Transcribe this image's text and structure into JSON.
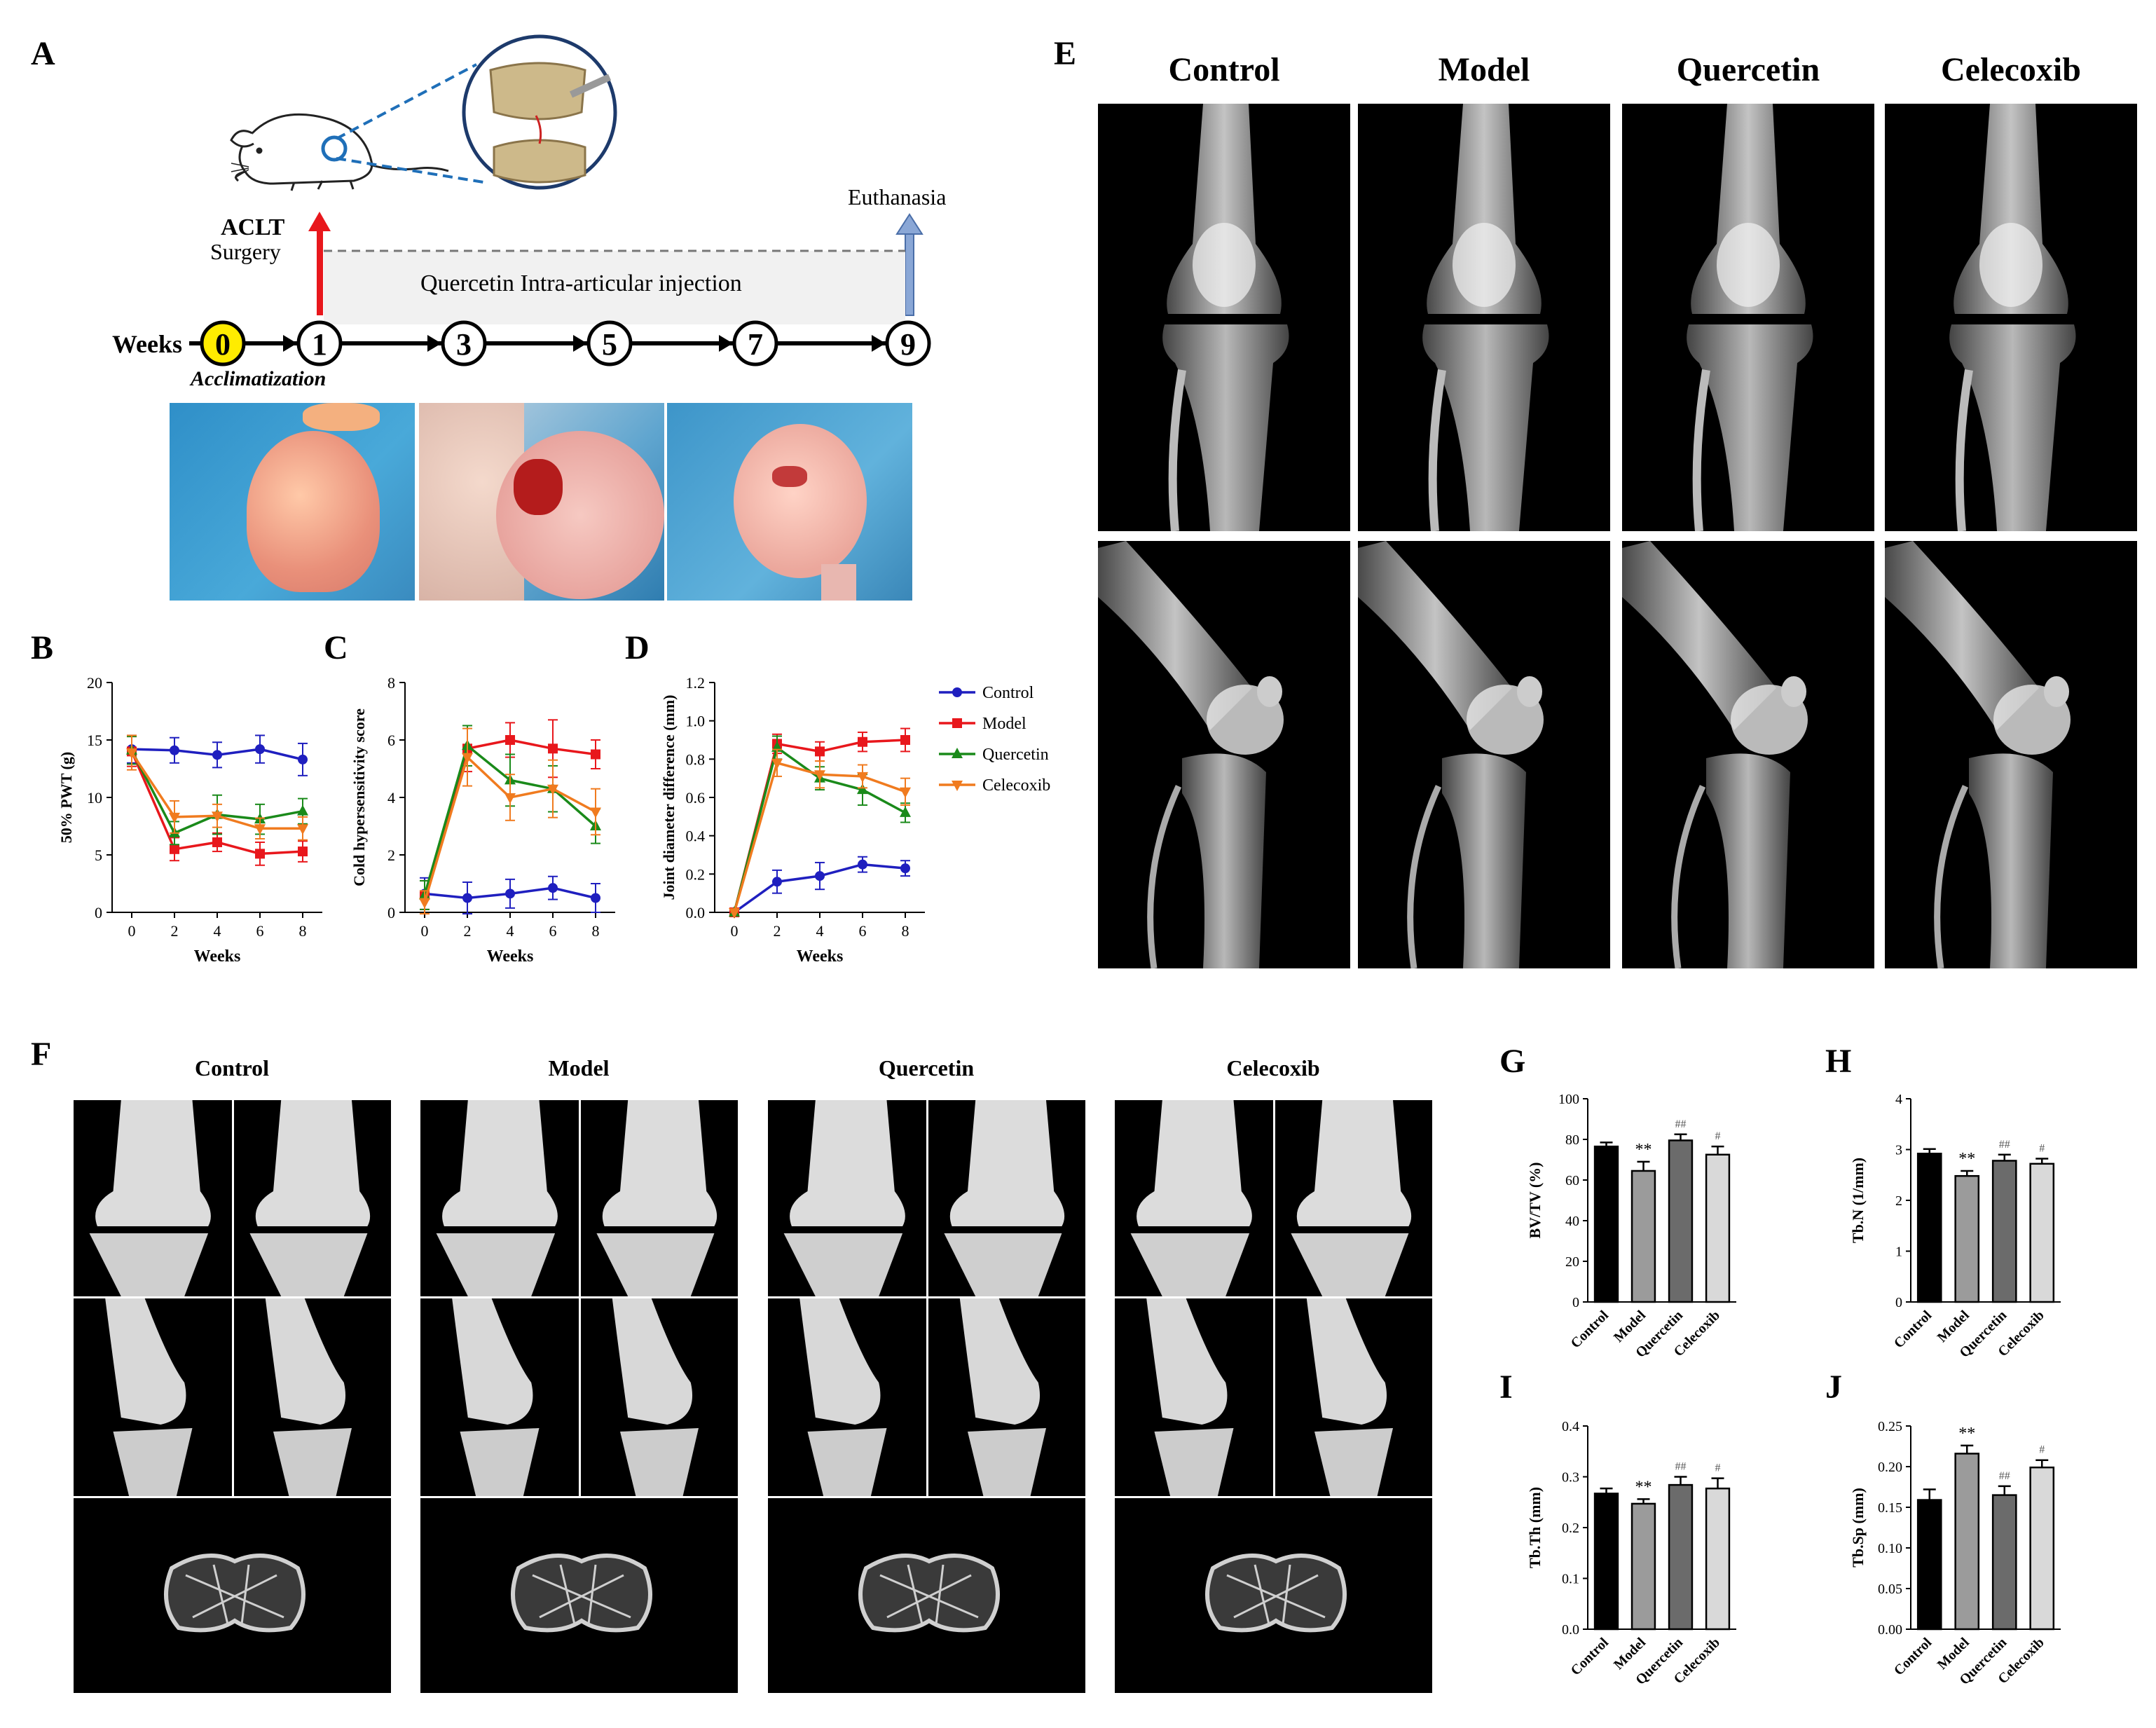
{
  "panel_labels": {
    "A": "A",
    "B": "B",
    "C": "C",
    "D": "D",
    "E": "E",
    "F": "F",
    "G": "G",
    "H": "H",
    "I": "I",
    "J": "J"
  },
  "timeline": {
    "weeks_label": "Weeks",
    "acclimatization": "Acclimatization",
    "aclt": "ACLT",
    "surgery": "Surgery",
    "euthanasia": "Euthanasia",
    "injection": "Quercetin  Intra-articular injection",
    "nodes": [
      "0",
      "1",
      "3",
      "5",
      "7",
      "9"
    ]
  },
  "groups": [
    "Control",
    "Model",
    "Quercetin",
    "Celecoxib"
  ],
  "colors": {
    "Control": "#1f1fbf",
    "Model": "#e8171c",
    "Quercetin": "#1a8a1a",
    "Celecoxib": "#f07b1f"
  },
  "bar_colors": [
    "#000000",
    "#9b9b9b",
    "#6b6b6b",
    "#d9d9d9"
  ],
  "chart_data": [
    {
      "id": "B",
      "type": "line",
      "xlabel": "Weeks",
      "ylabel": "50% PWT (g)",
      "ylim": [
        0,
        20
      ],
      "yticks": [
        0,
        5,
        10,
        15,
        20
      ],
      "x": [
        0,
        2,
        4,
        6,
        8
      ],
      "series": [
        {
          "name": "Control",
          "values": [
            14.2,
            14.1,
            13.7,
            14.2,
            13.3
          ],
          "err": [
            1.2,
            1.1,
            1.1,
            1.2,
            1.4
          ]
        },
        {
          "name": "Model",
          "values": [
            14.0,
            5.5,
            6.1,
            5.1,
            5.3
          ],
          "err": [
            1.3,
            1.0,
            0.8,
            1.0,
            0.9
          ]
        },
        {
          "name": "Quercetin",
          "values": [
            14.1,
            6.9,
            8.5,
            8.1,
            8.8
          ],
          "err": [
            1.2,
            1.0,
            1.7,
            1.3,
            1.1
          ]
        },
        {
          "name": "Celecoxib",
          "values": [
            13.9,
            8.3,
            8.4,
            7.3,
            7.3
          ],
          "err": [
            1.5,
            1.4,
            1.0,
            0.9,
            1.0
          ]
        }
      ]
    },
    {
      "id": "C",
      "type": "line",
      "xlabel": "Weeks",
      "ylabel": "Cold hypersensitivity score",
      "ylim": [
        0,
        8
      ],
      "yticks": [
        0,
        2,
        4,
        6,
        8
      ],
      "x": [
        0,
        2,
        4,
        6,
        8
      ],
      "series": [
        {
          "name": "Control",
          "values": [
            0.65,
            0.5,
            0.65,
            0.85,
            0.5
          ],
          "err": [
            0.55,
            0.55,
            0.5,
            0.4,
            0.5
          ]
        },
        {
          "name": "Model",
          "values": [
            0.6,
            5.7,
            6.0,
            5.7,
            5.5
          ],
          "err": [
            0.5,
            0.8,
            0.6,
            1.0,
            0.5
          ]
        },
        {
          "name": "Quercetin",
          "values": [
            0.6,
            5.8,
            4.6,
            4.3,
            3.0
          ],
          "err": [
            0.5,
            0.7,
            0.9,
            0.8,
            0.6
          ]
        },
        {
          "name": "Celecoxib",
          "values": [
            0.35,
            5.4,
            4.0,
            4.3,
            3.5
          ],
          "err": [
            0.4,
            1.0,
            0.8,
            1.0,
            0.8
          ]
        }
      ]
    },
    {
      "id": "D",
      "type": "line",
      "xlabel": "Weeks",
      "ylabel": "Joint diameter difference (mm)",
      "ylim": [
        0,
        1.2
      ],
      "yticks": [
        "0.0",
        "0.2",
        "0.4",
        "0.6",
        "0.8",
        "1.0",
        "1.2"
      ],
      "x": [
        0,
        2,
        4,
        6,
        8
      ],
      "series": [
        {
          "name": "Control",
          "values": [
            0,
            0.16,
            0.19,
            0.25,
            0.23
          ],
          "err": [
            0,
            0.06,
            0.07,
            0.04,
            0.04
          ]
        },
        {
          "name": "Model",
          "values": [
            0,
            0.88,
            0.84,
            0.89,
            0.9
          ],
          "err": [
            0,
            0.05,
            0.05,
            0.05,
            0.06
          ]
        },
        {
          "name": "Quercetin",
          "values": [
            0,
            0.86,
            0.7,
            0.64,
            0.52
          ],
          "err": [
            0,
            0.06,
            0.06,
            0.08,
            0.05
          ]
        },
        {
          "name": "Celecoxib",
          "values": [
            0,
            0.78,
            0.72,
            0.71,
            0.63
          ],
          "err": [
            0,
            0.07,
            0.07,
            0.06,
            0.07
          ]
        }
      ]
    },
    {
      "id": "G",
      "type": "bar",
      "ylabel": "BV/TV (%)",
      "ylim": [
        0,
        100
      ],
      "yticks": [
        "0",
        "20",
        "40",
        "60",
        "80",
        "100"
      ],
      "categories": [
        "Control",
        "Model",
        "Quercetin",
        "Celecoxib"
      ],
      "values": [
        76.5,
        64.5,
        79.5,
        72.5
      ],
      "err": [
        2.0,
        4.5,
        3.0,
        4.0
      ],
      "annotations": [
        "",
        "**",
        "##",
        "#"
      ]
    },
    {
      "id": "H",
      "type": "bar",
      "ylabel": "Tb.N (1/mm)",
      "ylim": [
        0,
        4
      ],
      "yticks": [
        "0",
        "1",
        "2",
        "3",
        "4"
      ],
      "categories": [
        "Control",
        "Model",
        "Quercetin",
        "Celecoxib"
      ],
      "values": [
        2.92,
        2.48,
        2.78,
        2.72
      ],
      "err": [
        0.09,
        0.1,
        0.12,
        0.1
      ],
      "annotations": [
        "",
        "**",
        "##",
        "#"
      ]
    },
    {
      "id": "I",
      "type": "bar",
      "ylabel": "Tb.Th (mm)",
      "ylim": [
        0,
        0.4
      ],
      "yticks": [
        "0.0",
        "0.1",
        "0.2",
        "0.3",
        "0.4"
      ],
      "categories": [
        "Control",
        "Model",
        "Quercetin",
        "Celecoxib"
      ],
      "values": [
        0.267,
        0.247,
        0.284,
        0.277
      ],
      "err": [
        0.01,
        0.009,
        0.016,
        0.02
      ],
      "annotations": [
        "",
        "**",
        "##",
        "#"
      ]
    },
    {
      "id": "J",
      "type": "bar",
      "ylabel": "Tb.Sp (mm)",
      "ylim": [
        0,
        0.25
      ],
      "yticks": [
        "0.00",
        "0.05",
        "0.10",
        "0.15",
        "0.20",
        "0.25"
      ],
      "categories": [
        "Control",
        "Model",
        "Quercetin",
        "Celecoxib"
      ],
      "values": [
        0.159,
        0.216,
        0.165,
        0.199
      ],
      "err": [
        0.013,
        0.01,
        0.011,
        0.009
      ],
      "annotations": [
        "",
        "**",
        "##",
        "#"
      ]
    }
  ]
}
